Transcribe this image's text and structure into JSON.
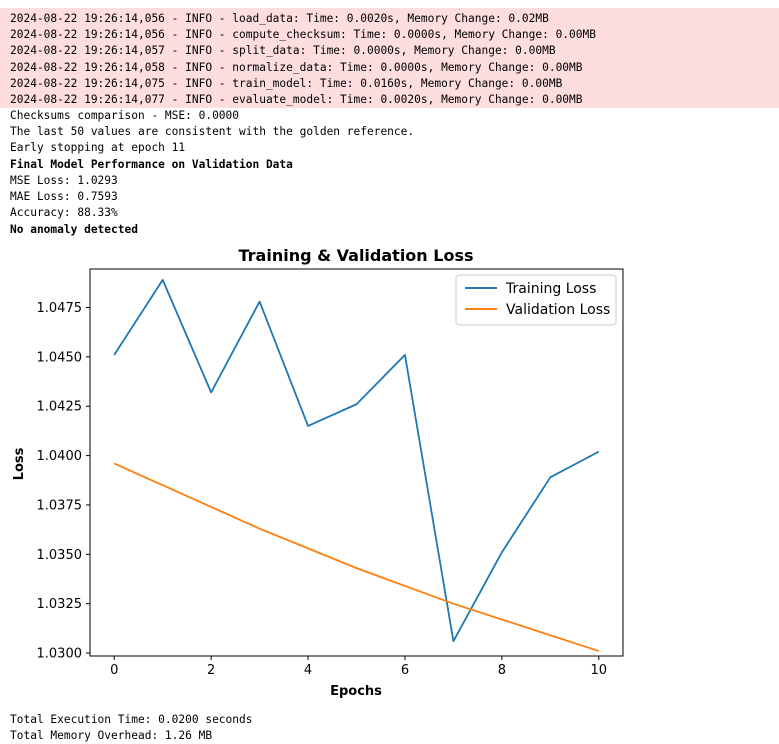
{
  "log_lines": [
    "2024-08-22 19:26:14,056 - INFO - load_data: Time: 0.0020s, Memory Change: 0.02MB",
    "2024-08-22 19:26:14,056 - INFO - compute_checksum: Time: 0.0000s, Memory Change: 0.00MB",
    "2024-08-22 19:26:14,057 - INFO - split_data: Time: 0.0000s, Memory Change: 0.00MB",
    "2024-08-22 19:26:14,058 - INFO - normalize_data: Time: 0.0000s, Memory Change: 0.00MB",
    "2024-08-22 19:26:14,075 - INFO - train_model: Time: 0.0160s, Memory Change: 0.00MB",
    "2024-08-22 19:26:14,077 - INFO - evaluate_model: Time: 0.0020s, Memory Change: 0.00MB"
  ],
  "stdout_lines": [
    "Checksums comparison - MSE: 0.0000",
    "The last 50 values are consistent with the golden reference.",
    "Early stopping at epoch 11",
    "Final Model Performance on Validation Data",
    "MSE Loss: 1.0293",
    "MAE Loss: 0.7593",
    "Accuracy: 88.33%",
    "No anomaly detected"
  ],
  "footer_lines": [
    "Total Execution Time: 0.0200 seconds",
    "Total Memory Overhead: 1.26 MB"
  ],
  "colors": {
    "stderr_bg": "#fddddd",
    "training": "#1f77b4",
    "validation": "#ff7f0e"
  },
  "chart_data": {
    "type": "line",
    "title": "Training & Validation Loss",
    "xlabel": "Epochs",
    "ylabel": "Loss",
    "xlim": [
      -0.5,
      10.5
    ],
    "ylim": [
      1.02985,
      1.04945
    ],
    "xticks": [
      0,
      2,
      4,
      6,
      8,
      10
    ],
    "yticks": [
      1.03,
      1.0325,
      1.035,
      1.0375,
      1.04,
      1.0425,
      1.045,
      1.0475
    ],
    "ytick_labels": [
      "1.0300",
      "1.0325",
      "1.0350",
      "1.0375",
      "1.0400",
      "1.0425",
      "1.0450",
      "1.0475"
    ],
    "legend": "top-right",
    "grid": false,
    "x": [
      0,
      1,
      2,
      3,
      4,
      5,
      6,
      7,
      8,
      9,
      10
    ],
    "series": [
      {
        "name": "Training Loss",
        "color": "#1f77b4",
        "values": [
          1.0451,
          1.0489,
          1.0432,
          1.0478,
          1.0415,
          1.0426,
          1.0451,
          1.0306,
          1.0351,
          1.0389,
          1.0402
        ]
      },
      {
        "name": "Validation Loss",
        "color": "#ff7f0e",
        "values": [
          1.0396,
          1.0385,
          1.0374,
          1.0363,
          1.0353,
          1.0343,
          1.0334,
          1.0325,
          1.0317,
          1.0309,
          1.0301
        ]
      }
    ]
  }
}
